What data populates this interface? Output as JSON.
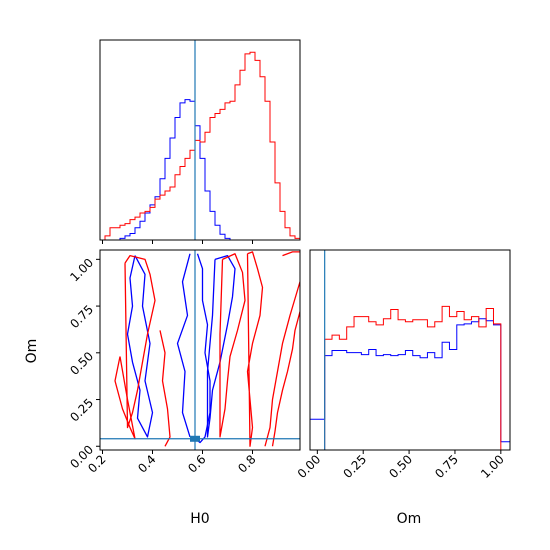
{
  "chart_data": {
    "type": "corner",
    "parameters": [
      "H0",
      "Om"
    ],
    "truth": {
      "H0": 0.57,
      "Om": 0.04
    },
    "colors": {
      "run_a": "#0000ff",
      "run_b": "#ff0000",
      "truth": "#1f77b4"
    },
    "panels": [
      {
        "kind": "histogram",
        "parameter": "H0",
        "xlim": [
          0.19,
          0.99
        ],
        "bin_edges": [
          0.19,
          0.21,
          0.23,
          0.25,
          0.27,
          0.29,
          0.31,
          0.33,
          0.35,
          0.37,
          0.39,
          0.41,
          0.43,
          0.45,
          0.47,
          0.49,
          0.51,
          0.53,
          0.55,
          0.57,
          0.59,
          0.61,
          0.63,
          0.65,
          0.67,
          0.69,
          0.71,
          0.73,
          0.75,
          0.77,
          0.79,
          0.81,
          0.83,
          0.85,
          0.87,
          0.89,
          0.91,
          0.93,
          0.95,
          0.97,
          0.99
        ],
        "series": [
          {
            "color": "blue",
            "values": [
              0,
              0,
              0,
              0,
              0.2,
              0.5,
              0.8,
              1.5,
              2.3,
              3.3,
              4.3,
              5.3,
              7.5,
              10.0,
              12.5,
              15.0,
              16.8,
              17.2,
              17.0,
              14.0,
              10.0,
              6.0,
              3.5,
              1.8,
              0.7,
              0.2,
              0,
              0,
              0,
              0,
              0,
              0,
              0,
              0,
              0,
              0,
              0,
              0,
              0,
              0
            ]
          },
          {
            "color": "red",
            "values": [
              0,
              0.5,
              1.5,
              1.5,
              1.8,
              2.0,
              2.5,
              2.8,
              3.3,
              3.5,
              4.0,
              5.0,
              5.5,
              6.0,
              6.5,
              8.0,
              9.0,
              10.0,
              11.0,
              12.2,
              12.0,
              13.2,
              15.0,
              15.5,
              16.0,
              16.8,
              17.0,
              19.0,
              20.8,
              22.8,
              23.0,
              22.0,
              20.0,
              17.0,
              12.0,
              7.0,
              3.5,
              1.5,
              0.5,
              0.2
            ]
          }
        ]
      },
      {
        "kind": "contour",
        "x": "H0",
        "y": "Om",
        "xlim": [
          0.19,
          0.99
        ],
        "ylim": [
          -0.02,
          1.05
        ],
        "contours": [
          {
            "color": "blue",
            "x": [
              0.33,
              0.31,
              0.32,
              0.3,
              0.32,
              0.35,
              0.34,
              0.38,
              0.4,
              0.37,
              0.39,
              0.36,
              0.37,
              0.33
            ],
            "y": [
              1.02,
              0.9,
              0.75,
              0.6,
              0.45,
              0.3,
              0.15,
              0.05,
              0.18,
              0.35,
              0.55,
              0.75,
              0.92,
              1.02
            ]
          },
          {
            "color": "blue",
            "x": [
              0.58,
              0.6,
              0.6,
              0.62,
              0.61,
              0.63,
              0.63,
              0.61,
              0.59,
              0.58
            ],
            "y": [
              1.03,
              0.95,
              0.78,
              0.65,
              0.5,
              0.35,
              0.18,
              0.05,
              0.02,
              0.03
            ]
          },
          {
            "color": "blue",
            "x": [
              0.55,
              0.52,
              0.54,
              0.5,
              0.53,
              0.52,
              0.55
            ],
            "y": [
              1.03,
              0.88,
              0.7,
              0.55,
              0.4,
              0.18,
              0.05
            ]
          },
          {
            "color": "blue",
            "x": [
              0.65,
              0.7,
              0.73,
              0.72,
              0.7,
              0.67,
              0.64,
              0.63,
              0.62,
              0.62,
              0.64,
              0.65
            ],
            "y": [
              1.0,
              1.02,
              0.95,
              0.8,
              0.65,
              0.45,
              0.3,
              0.15,
              0.05,
              0.4,
              0.7,
              1.0
            ]
          },
          {
            "color": "red",
            "x": [
              0.29,
              0.31,
              0.37,
              0.39,
              0.41,
              0.38,
              0.36,
              0.34,
              0.32,
              0.3,
              0.29
            ],
            "y": [
              0.98,
              1.02,
              1.0,
              0.92,
              0.78,
              0.6,
              0.45,
              0.3,
              0.18,
              0.1,
              0.98
            ]
          },
          {
            "color": "red",
            "x": [
              0.27,
              0.25,
              0.28,
              0.31,
              0.33,
              0.3,
              0.27
            ],
            "y": [
              0.48,
              0.35,
              0.2,
              0.1,
              0.04,
              0.25,
              0.48
            ]
          },
          {
            "color": "red",
            "x": [
              0.43,
              0.45,
              0.44,
              0.46,
              0.47,
              0.45
            ],
            "y": [
              0.62,
              0.5,
              0.35,
              0.2,
              0.05,
              0.0
            ]
          },
          {
            "color": "red",
            "x": [
              0.68,
              0.73,
              0.76,
              0.77,
              0.74,
              0.71,
              0.7,
              0.69,
              0.67,
              0.67,
              0.68
            ],
            "y": [
              1.0,
              1.03,
              0.93,
              0.78,
              0.62,
              0.48,
              0.35,
              0.2,
              0.05,
              0.6,
              1.0
            ]
          },
          {
            "color": "red",
            "x": [
              0.78,
              0.8,
              0.82,
              0.84,
              0.83,
              0.8,
              0.78,
              0.79,
              0.8,
              0.79,
              0.78
            ],
            "y": [
              1.03,
              1.04,
              0.95,
              0.85,
              0.7,
              0.55,
              0.4,
              0.25,
              0.1,
              0.0,
              1.03
            ]
          },
          {
            "color": "red",
            "x": [
              0.85,
              0.87,
              0.88,
              0.9,
              0.92,
              0.95,
              0.99
            ],
            "y": [
              0.0,
              0.1,
              0.25,
              0.4,
              0.55,
              0.7,
              0.88
            ]
          },
          {
            "color": "red",
            "x": [
              0.88,
              0.89,
              0.9,
              0.92,
              0.94,
              0.96,
              0.97,
              0.99
            ],
            "y": [
              0.0,
              0.08,
              0.18,
              0.3,
              0.4,
              0.52,
              0.62,
              0.72
            ]
          },
          {
            "color": "red",
            "x": [
              0.92,
              0.96,
              0.99
            ],
            "y": [
              1.02,
              1.04,
              1.04
            ]
          }
        ]
      },
      {
        "kind": "histogram",
        "parameter": "Om",
        "xlim": [
          -0.04,
          1.05
        ],
        "bin_edges": [
          -0.04,
          0.0,
          0.04,
          0.08,
          0.12,
          0.16,
          0.2,
          0.24,
          0.28,
          0.32,
          0.36,
          0.4,
          0.44,
          0.48,
          0.52,
          0.56,
          0.6,
          0.64,
          0.68,
          0.72,
          0.76,
          0.8,
          0.84,
          0.88,
          0.92,
          0.96,
          1.0,
          1.05
        ],
        "series": [
          {
            "color": "blue",
            "values": [
              0.3,
              0.3,
              0.92,
              0.97,
              0.97,
              0.95,
              0.95,
              0.93,
              0.98,
              0.92,
              0.93,
              0.92,
              0.93,
              0.97,
              0.92,
              0.9,
              0.95,
              0.9,
              1.05,
              0.98,
              1.22,
              1.23,
              1.25,
              1.28,
              1.26,
              1.22,
              0.08
            ]
          },
          {
            "color": "red",
            "values": [
              0,
              0,
              1.08,
              1.12,
              1.08,
              1.2,
              1.3,
              1.3,
              1.25,
              1.22,
              1.28,
              1.37,
              1.27,
              1.25,
              1.27,
              1.27,
              1.2,
              1.25,
              1.4,
              1.3,
              1.35,
              1.27,
              1.3,
              1.2,
              1.38,
              1.23,
              0
            ]
          }
        ]
      }
    ],
    "axis_labels": {
      "x1": "H0",
      "x2": "Om",
      "y": "Om"
    },
    "ticks": {
      "H0": [
        "0.2",
        "0.4",
        "0.6",
        "0.8"
      ],
      "Om_y": [
        "0.00",
        "0.25",
        "0.50",
        "0.75",
        "1.00"
      ],
      "Om_x": [
        "0.00",
        "0.25",
        "0.50",
        "0.75",
        "1.00"
      ]
    }
  }
}
